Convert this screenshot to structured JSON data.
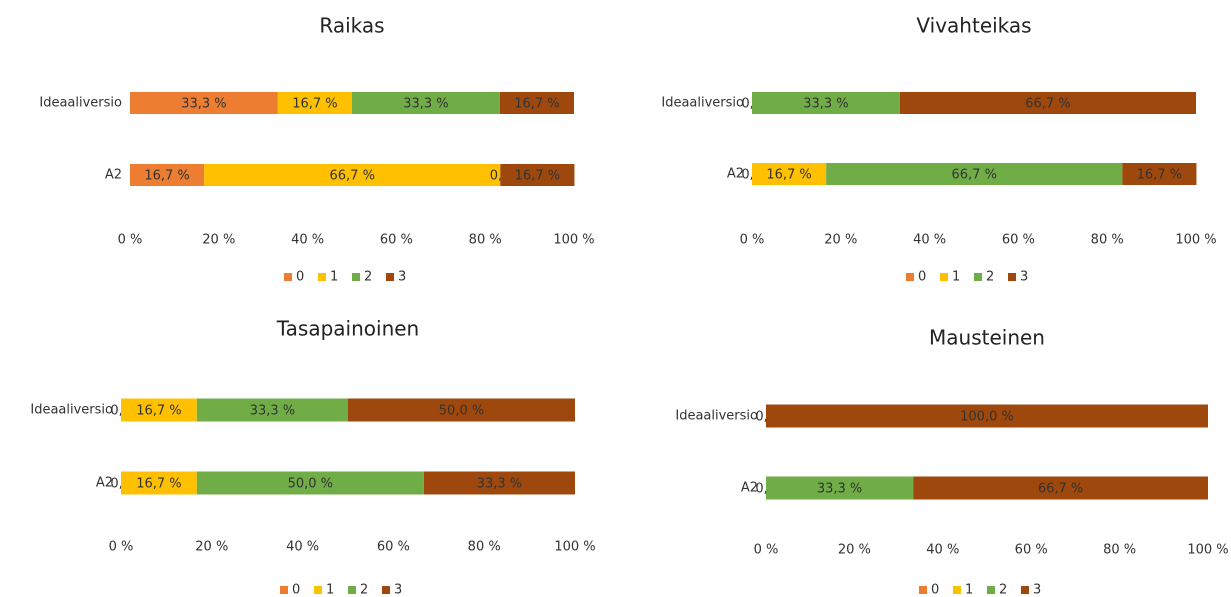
{
  "chart_data": [
    {
      "type": "bar",
      "stacked": true,
      "orientation": "horizontal",
      "title": "Raikas",
      "categories": [
        "Ideaaliversio",
        "A2"
      ],
      "series": [
        {
          "name": "0",
          "color": "#ED7D31",
          "values": [
            33.3,
            16.7
          ],
          "value_labels": [
            "33,3 %",
            "16,7 %"
          ]
        },
        {
          "name": "1",
          "color": "#FFC000",
          "values": [
            16.7,
            66.7
          ],
          "value_labels": [
            "16,7 %",
            "66,7 %"
          ]
        },
        {
          "name": "2",
          "color": "#70AD47",
          "values": [
            33.3,
            0.0
          ],
          "value_labels": [
            "33,3 %",
            "0,0 %"
          ]
        },
        {
          "name": "3",
          "color": "#9E480E",
          "values": [
            16.7,
            16.7
          ],
          "value_labels": [
            "16,7 %",
            "16,7 %"
          ]
        }
      ],
      "xlim": [
        0,
        100
      ],
      "xticks": [
        {
          "value": 0,
          "label": "0 %"
        },
        {
          "value": 20,
          "label": "20 %"
        },
        {
          "value": 40,
          "label": "40 %"
        },
        {
          "value": 60,
          "label": "60 %"
        },
        {
          "value": 80,
          "label": "80 %"
        },
        {
          "value": 100,
          "label": "100 %"
        }
      ],
      "legend": "bottom"
    },
    {
      "type": "bar",
      "stacked": true,
      "orientation": "horizontal",
      "title": "Vivahteikas",
      "categories": [
        "Ideaaliversio",
        "A2"
      ],
      "series": [
        {
          "name": "0",
          "color": "#ED7D31",
          "values": [
            0.0,
            0.0
          ],
          "value_labels": [
            "0,0 %",
            "0,0 %"
          ]
        },
        {
          "name": "1",
          "color": "#FFC000",
          "values": [
            0,
            16.7
          ],
          "value_labels": [
            null,
            "16,7 %"
          ]
        },
        {
          "name": "2",
          "color": "#70AD47",
          "values": [
            33.3,
            66.7
          ],
          "value_labels": [
            "33,3 %",
            "66,7 %"
          ]
        },
        {
          "name": "3",
          "color": "#9E480E",
          "values": [
            66.7,
            16.7
          ],
          "value_labels": [
            "66,7 %",
            "16,7 %"
          ]
        }
      ],
      "xlim": [
        0,
        100
      ],
      "xticks": [
        {
          "value": 0,
          "label": "0 %"
        },
        {
          "value": 20,
          "label": "20 %"
        },
        {
          "value": 40,
          "label": "40 %"
        },
        {
          "value": 60,
          "label": "60 %"
        },
        {
          "value": 80,
          "label": "80 %"
        },
        {
          "value": 100,
          "label": "100 %"
        }
      ],
      "legend": "bottom"
    },
    {
      "type": "bar",
      "stacked": true,
      "orientation": "horizontal",
      "title": "Tasapainoinen",
      "categories": [
        "Ideaaliversio",
        "A2"
      ],
      "series": [
        {
          "name": "0",
          "color": "#ED7D31",
          "values": [
            0.0,
            0.0
          ],
          "value_labels": [
            "0,0 %",
            "0,0 %"
          ]
        },
        {
          "name": "1",
          "color": "#FFC000",
          "values": [
            16.7,
            16.7
          ],
          "value_labels": [
            "16,7 %",
            "16,7 %"
          ]
        },
        {
          "name": "2",
          "color": "#70AD47",
          "values": [
            33.3,
            50.0
          ],
          "value_labels": [
            "33,3 %",
            "50,0 %"
          ]
        },
        {
          "name": "3",
          "color": "#9E480E",
          "values": [
            50.0,
            33.3
          ],
          "value_labels": [
            "50,0 %",
            "33,3 %"
          ]
        }
      ],
      "xlim": [
        0,
        100
      ],
      "xticks": [
        {
          "value": 0,
          "label": "0 %"
        },
        {
          "value": 20,
          "label": "20 %"
        },
        {
          "value": 40,
          "label": "40 %"
        },
        {
          "value": 60,
          "label": "60 %"
        },
        {
          "value": 80,
          "label": "80 %"
        },
        {
          "value": 100,
          "label": "100 %"
        }
      ],
      "legend": "bottom"
    },
    {
      "type": "bar",
      "stacked": true,
      "orientation": "horizontal",
      "title": "Mausteinen",
      "categories": [
        "Ideaaliversio",
        "A2"
      ],
      "series": [
        {
          "name": "0",
          "color": "#ED7D31",
          "values": [
            0.0,
            0.0
          ],
          "value_labels": [
            "0,0 %",
            "0,0 %"
          ]
        },
        {
          "name": "1",
          "color": "#FFC000",
          "values": [
            0,
            0
          ],
          "value_labels": [
            null,
            null
          ]
        },
        {
          "name": "2",
          "color": "#70AD47",
          "values": [
            0,
            33.3
          ],
          "value_labels": [
            null,
            "33,3 %"
          ]
        },
        {
          "name": "3",
          "color": "#9E480E",
          "values": [
            100.0,
            66.7
          ],
          "value_labels": [
            "100,0 %",
            "66,7 %"
          ]
        }
      ],
      "xlim": [
        0,
        100
      ],
      "xticks": [
        {
          "value": 0,
          "label": "0 %"
        },
        {
          "value": 20,
          "label": "20 %"
        },
        {
          "value": 40,
          "label": "40 %"
        },
        {
          "value": 60,
          "label": "60 %"
        },
        {
          "value": 80,
          "label": "80 %"
        },
        {
          "value": 100,
          "label": "100 %"
        }
      ],
      "legend": "bottom"
    }
  ]
}
